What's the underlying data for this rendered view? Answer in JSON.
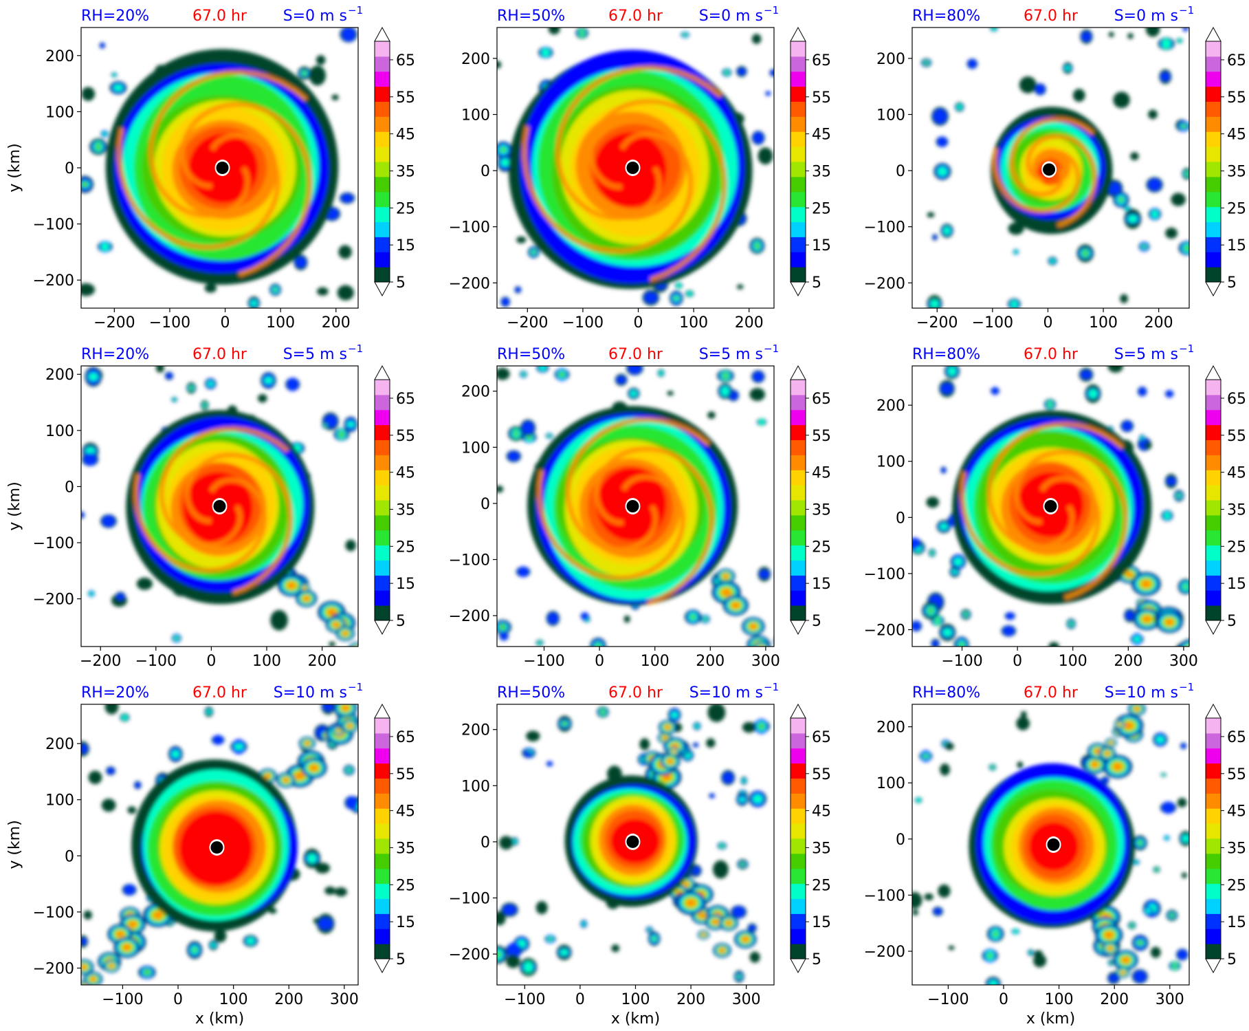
{
  "figure": {
    "time_label": "67.0 hr",
    "xlabel": "x (km)",
    "ylabel": "y (km)"
  },
  "colorbar": {
    "levels": [
      5,
      10,
      15,
      20,
      25,
      30,
      35,
      40,
      45,
      50,
      55,
      60,
      65,
      70
    ],
    "tick_labels": [
      "5",
      "15",
      "25",
      "35",
      "45",
      "55",
      "65"
    ],
    "colors": [
      "#00442b",
      "#0000ff",
      "#0032ff",
      "#00d2ff",
      "#00ffc8",
      "#28e632",
      "#46cd00",
      "#a0e600",
      "#e6e600",
      "#ffd200",
      "#ff8c00",
      "#ff5a00",
      "#ff0000",
      "#ee00ee",
      "#cc66dd",
      "#f5b4f0"
    ],
    "under_color": "#ffffff",
    "over_color": "#ffffff"
  },
  "chart_data": [
    {
      "type": "heatmap",
      "rh_label": "RH=20%",
      "time_label": "67.0 hr",
      "shear_label": "S=0 m s",
      "xlim": [
        -260,
        240
      ],
      "ylim": [
        -250,
        250
      ],
      "xticks": [
        -200,
        -100,
        0,
        100,
        200
      ],
      "yticks": [
        -200,
        -100,
        0,
        100,
        200
      ],
      "center": [
        -5,
        0
      ]
    },
    {
      "type": "heatmap",
      "rh_label": "RH=50%",
      "time_label": "67.0 hr",
      "shear_label": "S=0 m s",
      "xlim": [
        -255,
        245
      ],
      "ylim": [
        -245,
        255
      ],
      "xticks": [
        -200,
        -100,
        0,
        100,
        200
      ],
      "yticks": [
        -200,
        -100,
        0,
        100,
        200
      ],
      "center": [
        -10,
        5
      ]
    },
    {
      "type": "heatmap",
      "rh_label": "RH=80%",
      "time_label": "67.0 hr",
      "shear_label": "S=0 m s",
      "xlim": [
        -245,
        255
      ],
      "ylim": [
        -245,
        255
      ],
      "xticks": [
        -200,
        -100,
        0,
        100,
        200
      ],
      "yticks": [
        -200,
        -100,
        0,
        100,
        200
      ],
      "center": [
        2,
        2
      ]
    },
    {
      "type": "heatmap",
      "rh_label": "RH=20%",
      "time_label": "67.0 hr",
      "shear_label": "S=5 m s",
      "xlim": [
        -235,
        265
      ],
      "ylim": [
        -285,
        215
      ],
      "xticks": [
        -200,
        -100,
        0,
        100,
        200
      ],
      "yticks": [
        -200,
        -100,
        0,
        100,
        200
      ],
      "center": [
        15,
        -35
      ]
    },
    {
      "type": "heatmap",
      "rh_label": "RH=50%",
      "time_label": "67.0 hr",
      "shear_label": "S=5 m s",
      "xlim": [
        -185,
        315
      ],
      "ylim": [
        -255,
        245
      ],
      "xticks": [
        -100,
        0,
        100,
        200,
        300
      ],
      "yticks": [
        -200,
        -100,
        0,
        100,
        200
      ],
      "center": [
        60,
        -5
      ]
    },
    {
      "type": "heatmap",
      "rh_label": "RH=80%",
      "time_label": "67.0 hr",
      "shear_label": "S=5 m s",
      "xlim": [
        -190,
        310
      ],
      "ylim": [
        -230,
        270
      ],
      "xticks": [
        -100,
        0,
        100,
        200,
        300
      ],
      "yticks": [
        -200,
        -100,
        0,
        100,
        200
      ],
      "center": [
        60,
        20
      ]
    },
    {
      "type": "heatmap",
      "rh_label": "RH=20%",
      "time_label": "67.0 hr",
      "shear_label": "S=10 m s",
      "xlim": [
        -175,
        325
      ],
      "ylim": [
        -230,
        270
      ],
      "xticks": [
        -100,
        0,
        100,
        200,
        300
      ],
      "yticks": [
        -200,
        -100,
        0,
        100,
        200
      ],
      "center": [
        70,
        15
      ]
    },
    {
      "type": "heatmap",
      "rh_label": "RH=50%",
      "time_label": "67.0 hr",
      "shear_label": "S=10 m s",
      "xlim": [
        -150,
        350
      ],
      "ylim": [
        -255,
        245
      ],
      "xticks": [
        -100,
        0,
        100,
        200,
        300
      ],
      "yticks": [
        -200,
        -100,
        0,
        100,
        200
      ],
      "center": [
        95,
        0
      ]
    },
    {
      "type": "heatmap",
      "rh_label": "RH=80%",
      "time_label": "67.0 hr",
      "shear_label": "S=10 m s",
      "xlim": [
        -165,
        335
      ],
      "ylim": [
        -260,
        240
      ],
      "xticks": [
        -100,
        0,
        100,
        200,
        300
      ],
      "yticks": [
        -200,
        -100,
        0,
        100,
        200
      ],
      "center": [
        90,
        -10
      ]
    }
  ]
}
